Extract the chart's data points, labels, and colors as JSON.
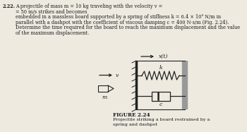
{
  "problem_num": "2.22.",
  "line1": "A projectile of mass m = 10 kg traveling with the velocity v =",
  "line2": "= 50 m/s strikes and becomes",
  "line3": "embedded in a massless board supported by a spring of stiffness k = 6.4 × 10⁴ N/m in",
  "line4": "parallel with a dashpot with the coefficient of viscous damping c = 400 N·s/m (Fig. 2.24).",
  "line5": "Determine the time required for the board to reach the maximum displacement and the value",
  "line6": "of the maximum displacement.",
  "figure_label": "FIGURE 2.24",
  "figure_cap1": "Projectile striking a board restrained by a",
  "figure_cap2": "spring and dashpot",
  "label_v": "v",
  "label_m": "m",
  "label_k": "k",
  "label_c": "c",
  "label_xt": "x(t)",
  "bg_color": "#eeeae0",
  "text_color": "#1a1a1a",
  "diagram_color": "#222222",
  "wall_color": "#222222",
  "board_color": "#999999",
  "fs_body": 4.8,
  "fs_label": 5.5,
  "fs_fig": 5.2,
  "fs_cap": 4.6
}
